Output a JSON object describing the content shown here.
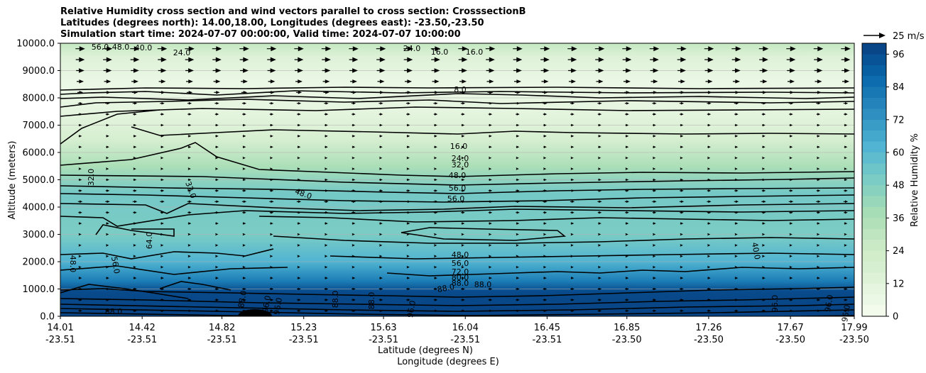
{
  "title": {
    "line1": "Relative Humidity cross section and wind vectors parallel to cross section: CrosssectionB",
    "line2": "Latitudes (degrees north): 14.00,18.00, Longitudes (degrees east): -23.50,-23.50",
    "line3": "Simulation start time: 2024-07-07 00:00:00, Valid time: 2024-07-07 10:00:00"
  },
  "chart_data": {
    "type": "contour",
    "xlabel_lat": "Latitude (degrees N)",
    "xlabel_lon": "Longitude (degrees E)",
    "ylabel": "Altitude (meters)",
    "colorbar_label": "Relative Humidity %",
    "quiver_key": "25 m/s",
    "ylim": [
      0,
      10000
    ],
    "xlim": [
      14.01,
      17.99
    ],
    "colorbar_range": [
      0,
      100
    ],
    "y_ticks": [
      "0.0",
      "1000.0",
      "2000.0",
      "3000.0",
      "4000.0",
      "5000.0",
      "6000.0",
      "7000.0",
      "8000.0",
      "9000.0",
      "10000.0"
    ],
    "x_ticks_lat": [
      "14.01",
      "14.42",
      "14.82",
      "15.23",
      "15.63",
      "16.04",
      "16.45",
      "16.85",
      "17.26",
      "17.67",
      "17.99"
    ],
    "x_ticks_lon": [
      "-23.51",
      "-23.51",
      "-23.51",
      "-23.51",
      "-23.51",
      "-23.51",
      "-23.51",
      "-23.50",
      "-23.50",
      "-23.50",
      "-23.50"
    ],
    "colorbar_ticks": [
      "0",
      "12",
      "24",
      "36",
      "48",
      "60",
      "72",
      "84",
      "96"
    ],
    "grid": "horizontal",
    "contour_levels": [
      8,
      16,
      24,
      32,
      40,
      48,
      56,
      64,
      72,
      80,
      88,
      96
    ],
    "contour_labels": [
      "56.0",
      "48.0",
      "40.0",
      "24.0",
      "24.0",
      "16.0",
      "16.0",
      "8.0",
      "16.0",
      "24.0",
      "32.0",
      "32.0",
      "32.0",
      "48.0",
      "48.0",
      "56.0",
      "56.0",
      "64.0",
      "56.0",
      "48.0",
      "48.0",
      "56.0",
      "72.0",
      "80.0",
      "88.0",
      "88.0",
      "88.0",
      "40.0",
      "88.0",
      "88.0",
      "96.0",
      "96.0",
      "88.0",
      "88.0",
      "96.0",
      "96.0",
      "96.0",
      "96.0"
    ],
    "rh_profile": [
      {
        "alt": 0,
        "rh": 99
      },
      {
        "alt": 900,
        "rh": 97
      },
      {
        "alt": 1300,
        "rh": 80
      },
      {
        "alt": 2000,
        "rh": 62
      },
      {
        "alt": 3000,
        "rh": 50
      },
      {
        "alt": 4500,
        "rh": 52
      },
      {
        "alt": 5500,
        "rh": 36
      },
      {
        "alt": 6500,
        "rh": 18
      },
      {
        "alt": 7500,
        "rh": 10
      },
      {
        "alt": 8500,
        "rh": 6
      },
      {
        "alt": 9500,
        "rh": 14
      },
      {
        "alt": 10000,
        "rh": 28
      }
    ],
    "wind_rows_alt": [
      200,
      600,
      1000,
      1400,
      1800,
      2200,
      2600,
      3000,
      3400,
      3800,
      4200,
      4600,
      5000,
      5400,
      5800,
      6200,
      6600,
      7000,
      7400,
      7800,
      8200,
      8600,
      9000,
      9400,
      9800
    ],
    "wind_speed_ms": [
      6,
      6,
      6,
      5,
      4,
      4,
      4,
      4,
      5,
      6,
      7,
      6,
      5,
      4,
      4,
      5,
      5,
      5,
      6,
      7,
      9,
      11,
      13,
      14,
      15
    ]
  }
}
